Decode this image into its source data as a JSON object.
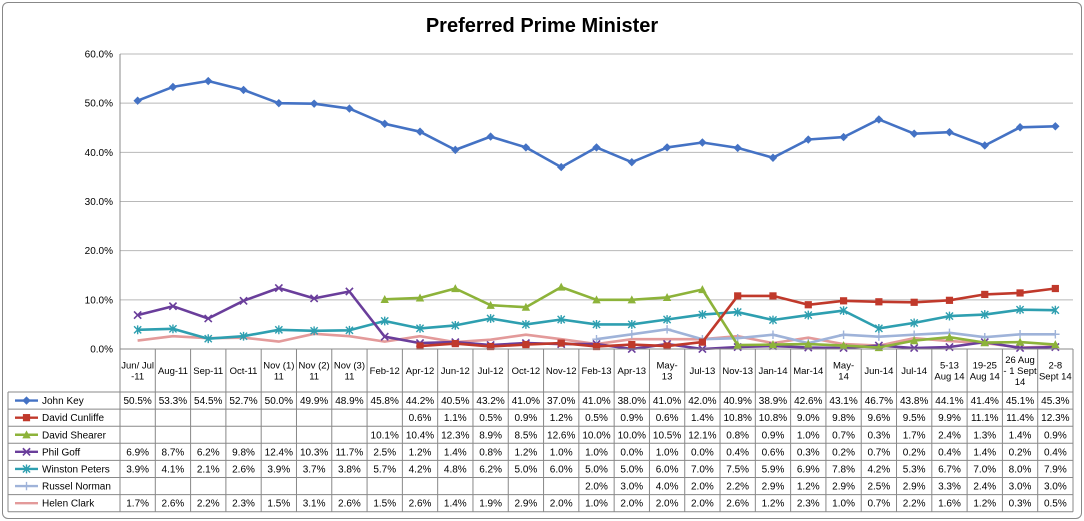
{
  "chart_data": {
    "type": "line",
    "title": "Preferred Prime Minister",
    "xlabel": "",
    "ylabel": "",
    "ylim": [
      0,
      60
    ],
    "y_ticks": [
      "0.0%",
      "10.0%",
      "20.0%",
      "30.0%",
      "40.0%",
      "50.0%",
      "60.0%"
    ],
    "grid": true,
    "legend": "data-table",
    "categories": [
      [
        "Jun/ Jul",
        "-11"
      ],
      [
        "Aug-11"
      ],
      [
        "Sep-11"
      ],
      [
        "Oct-11"
      ],
      [
        "Nov (1)",
        "11"
      ],
      [
        "Nov (2)",
        "11"
      ],
      [
        "Nov (3)",
        "11"
      ],
      [
        "Feb-12"
      ],
      [
        "Apr-12"
      ],
      [
        "Jun-12"
      ],
      [
        "Jul-12"
      ],
      [
        "Oct-12"
      ],
      [
        "Nov-12"
      ],
      [
        "Feb-13"
      ],
      [
        "Apr-13"
      ],
      [
        "May-",
        "13"
      ],
      [
        "Jul-13"
      ],
      [
        "Nov-13"
      ],
      [
        "Jan-14"
      ],
      [
        "Mar-14"
      ],
      [
        "May-",
        "14"
      ],
      [
        "Jun-14"
      ],
      [
        "Jul-14"
      ],
      [
        "5-13",
        "Aug 14"
      ],
      [
        "19-25",
        "Aug 14"
      ],
      [
        "26 Aug",
        "- 1 Sept",
        "14"
      ],
      [
        "2-8",
        "Sept 14"
      ]
    ],
    "series": [
      {
        "name": "John Key",
        "color": "#4472C4",
        "marker": "diamond",
        "values": [
          50.5,
          53.3,
          54.5,
          52.7,
          50.0,
          49.9,
          48.9,
          45.8,
          44.2,
          40.5,
          43.2,
          41.0,
          37.0,
          41.0,
          38.0,
          41.0,
          42.0,
          40.9,
          38.9,
          42.6,
          43.1,
          46.7,
          43.8,
          44.1,
          41.4,
          45.1,
          45.3
        ],
        "labels": [
          "50.5%",
          "53.3%",
          "54.5%",
          "52.7%",
          "50.0%",
          "49.9%",
          "48.9%",
          "45.8%",
          "44.2%",
          "40.5%",
          "43.2%",
          "41.0%",
          "37.0%",
          "41.0%",
          "38.0%",
          "41.0%",
          "42.0%",
          "40.9%",
          "38.9%",
          "42.6%",
          "43.1%",
          "46.7%",
          "43.8%",
          "44.1%",
          "41.4%",
          "45.1%",
          "45.3%"
        ]
      },
      {
        "name": "David Cunliffe",
        "color": "#C0392B",
        "marker": "square",
        "values": [
          null,
          null,
          null,
          null,
          null,
          null,
          null,
          null,
          0.6,
          1.1,
          0.5,
          0.9,
          1.2,
          0.5,
          0.9,
          0.6,
          1.4,
          10.8,
          10.8,
          9.0,
          9.8,
          9.6,
          9.5,
          9.9,
          11.1,
          11.4,
          12.3
        ],
        "labels": [
          "",
          "",
          "",
          "",
          "",
          "",
          "",
          "",
          "0.6%",
          "1.1%",
          "0.5%",
          "0.9%",
          "1.2%",
          "0.5%",
          "0.9%",
          "0.6%",
          "1.4%",
          "10.8%",
          "10.8%",
          "9.0%",
          "9.8%",
          "9.6%",
          "9.5%",
          "9.9%",
          "11.1%",
          "11.4%",
          "12.3%"
        ]
      },
      {
        "name": "David Shearer",
        "color": "#8DB33A",
        "marker": "triangle",
        "values": [
          null,
          null,
          null,
          null,
          null,
          null,
          null,
          10.1,
          10.4,
          12.3,
          8.9,
          8.5,
          12.6,
          10.0,
          10.0,
          10.5,
          12.1,
          0.8,
          0.9,
          1.0,
          0.7,
          0.3,
          1.7,
          2.4,
          1.3,
          1.4,
          0.9
        ],
        "labels": [
          "",
          "",
          "",
          "",
          "",
          "",
          "",
          "10.1%",
          "10.4%",
          "12.3%",
          "8.9%",
          "8.5%",
          "12.6%",
          "10.0%",
          "10.0%",
          "10.5%",
          "12.1%",
          "0.8%",
          "0.9%",
          "1.0%",
          "0.7%",
          "0.3%",
          "1.7%",
          "2.4%",
          "1.3%",
          "1.4%",
          "0.9%"
        ]
      },
      {
        "name": "Phil Goff",
        "color": "#6A3E9B",
        "marker": "x",
        "values": [
          6.9,
          8.7,
          6.2,
          9.8,
          12.4,
          10.3,
          11.7,
          2.5,
          1.2,
          1.4,
          0.8,
          1.2,
          1.0,
          1.0,
          0.0,
          1.0,
          0.0,
          0.4,
          0.6,
          0.3,
          0.2,
          0.7,
          0.2,
          0.4,
          1.4,
          0.2,
          0.4
        ],
        "labels": [
          "6.9%",
          "8.7%",
          "6.2%",
          "9.8%",
          "12.4%",
          "10.3%",
          "11.7%",
          "2.5%",
          "1.2%",
          "1.4%",
          "0.8%",
          "1.2%",
          "1.0%",
          "1.0%",
          "0.0%",
          "1.0%",
          "0.0%",
          "0.4%",
          "0.6%",
          "0.3%",
          "0.2%",
          "0.7%",
          "0.2%",
          "0.4%",
          "1.4%",
          "0.2%",
          "0.4%"
        ]
      },
      {
        "name": "Winston Peters",
        "color": "#2E9FB0",
        "marker": "asterisk",
        "values": [
          3.9,
          4.1,
          2.1,
          2.6,
          3.9,
          3.7,
          3.8,
          5.7,
          4.2,
          4.8,
          6.2,
          5.0,
          6.0,
          5.0,
          5.0,
          6.0,
          7.0,
          7.5,
          5.9,
          6.9,
          7.8,
          4.2,
          5.3,
          6.7,
          7.0,
          8.0,
          7.9
        ],
        "labels": [
          "3.9%",
          "4.1%",
          "2.1%",
          "2.6%",
          "3.9%",
          "3.7%",
          "3.8%",
          "5.7%",
          "4.2%",
          "4.8%",
          "6.2%",
          "5.0%",
          "6.0%",
          "5.0%",
          "5.0%",
          "6.0%",
          "7.0%",
          "7.5%",
          "5.9%",
          "6.9%",
          "7.8%",
          "4.2%",
          "5.3%",
          "6.7%",
          "7.0%",
          "8.0%",
          "7.9%"
        ]
      },
      {
        "name": "Russel Norman",
        "color": "#9FB3D9",
        "marker": "plus",
        "values": [
          null,
          null,
          null,
          null,
          null,
          null,
          null,
          null,
          null,
          null,
          null,
          null,
          null,
          2.0,
          3.0,
          4.0,
          2.0,
          2.2,
          2.9,
          1.2,
          2.9,
          2.5,
          2.9,
          3.3,
          2.4,
          3.0,
          3.0
        ],
        "labels": [
          "",
          "",
          "",
          "",
          "",
          "",
          "",
          "",
          "",
          "",
          "",
          "",
          "",
          "2.0%",
          "3.0%",
          "4.0%",
          "2.0%",
          "2.2%",
          "2.9%",
          "1.2%",
          "2.9%",
          "2.5%",
          "2.9%",
          "3.3%",
          "2.4%",
          "3.0%",
          "3.0%"
        ]
      },
      {
        "name": "Helen Clark",
        "color": "#E39A9A",
        "marker": "none",
        "values": [
          1.7,
          2.6,
          2.2,
          2.3,
          1.5,
          3.1,
          2.6,
          1.5,
          2.6,
          1.4,
          1.9,
          2.9,
          2.0,
          1.0,
          2.0,
          2.0,
          2.0,
          2.6,
          1.2,
          2.3,
          1.0,
          0.7,
          2.2,
          1.6,
          1.2,
          0.3,
          0.5
        ],
        "labels": [
          "1.7%",
          "2.6%",
          "2.2%",
          "2.3%",
          "1.5%",
          "3.1%",
          "2.6%",
          "1.5%",
          "2.6%",
          "1.4%",
          "1.9%",
          "2.9%",
          "2.0%",
          "1.0%",
          "2.0%",
          "2.0%",
          "2.0%",
          "2.6%",
          "1.2%",
          "2.3%",
          "1.0%",
          "0.7%",
          "2.2%",
          "1.6%",
          "1.2%",
          "0.3%",
          "0.5%"
        ]
      }
    ]
  }
}
